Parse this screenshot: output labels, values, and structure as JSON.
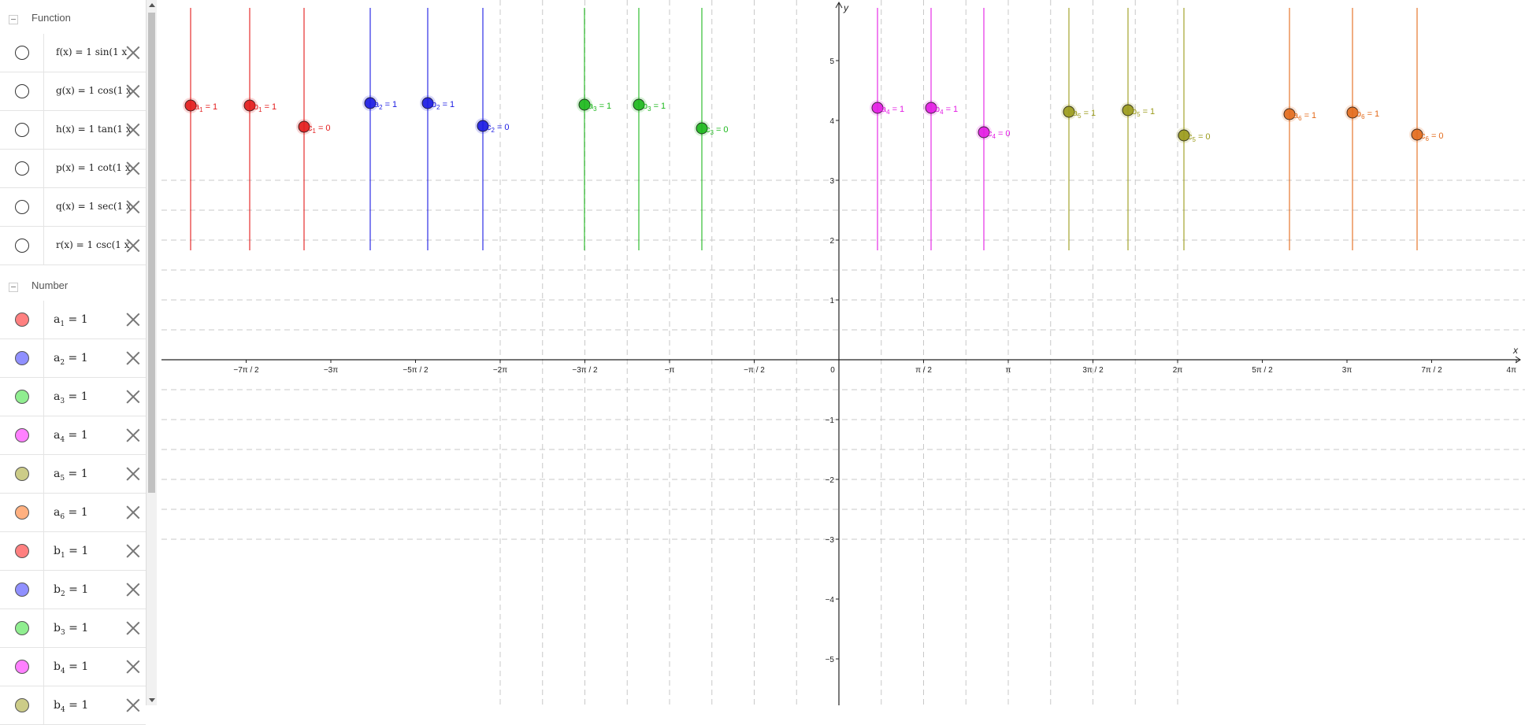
{
  "algebra": {
    "function_group": {
      "label": "Function"
    },
    "functions": [
      {
        "name": "f-row",
        "text": "f(x) = 1 sin(1 x"
      },
      {
        "name": "g-row",
        "text": "g(x) = 1 cos(1 x"
      },
      {
        "name": "h-row",
        "text": "h(x) = 1 tan(1 x"
      },
      {
        "name": "p-row",
        "text": "p(x) = 1 cot(1 x"
      },
      {
        "name": "q-row",
        "text": "q(x) = 1 sec(1 x"
      },
      {
        "name": "r-row",
        "text": "r(x) = 1 csc(1 x"
      }
    ],
    "number_group": {
      "label": "Number"
    },
    "numbers": [
      {
        "var": "a",
        "sub": "1",
        "value": "= 1",
        "color": "#ff8080"
      },
      {
        "var": "a",
        "sub": "2",
        "value": "= 1",
        "color": "#9090ff"
      },
      {
        "var": "a",
        "sub": "3",
        "value": "= 1",
        "color": "#90ee90"
      },
      {
        "var": "a",
        "sub": "4",
        "value": "= 1",
        "color": "#ff80ff"
      },
      {
        "var": "a",
        "sub": "5",
        "value": "= 1",
        "color": "#cccc88"
      },
      {
        "var": "a",
        "sub": "6",
        "value": "= 1",
        "color": "#ffb080"
      },
      {
        "var": "b",
        "sub": "1",
        "value": "= 1",
        "color": "#ff8080"
      },
      {
        "var": "b",
        "sub": "2",
        "value": "= 1",
        "color": "#9090ff"
      },
      {
        "var": "b",
        "sub": "3",
        "value": "= 1",
        "color": "#90ee90"
      },
      {
        "var": "b",
        "sub": "4",
        "value": "= 1",
        "color": "#ff80ff"
      },
      {
        "var": "b",
        "sub": "4",
        "value": "= 1",
        "color": "#cccc88"
      }
    ]
  },
  "graph": {
    "x_axis_label": "x",
    "y_axis_label": "y",
    "x_tick_labels": [
      "−7π / 2",
      "−3π",
      "−5π / 2",
      "−2π",
      "−3π / 2",
      "−π",
      "−π / 2",
      "0",
      "π / 2",
      "π",
      "3π / 2",
      "2π",
      "5π / 2",
      "3π",
      "7π / 2",
      "4π"
    ],
    "y_tick_labels": [
      "5",
      "4",
      "3",
      "2",
      "1",
      "−1",
      "−2",
      "−3",
      "−4",
      "−5"
    ],
    "slider_groups": [
      {
        "color": "#e31a1a",
        "sliders": [
          {
            "var": "a",
            "sub": "1",
            "value": "= 1"
          },
          {
            "var": "b",
            "sub": "1",
            "value": "= 1"
          },
          {
            "var": "c",
            "sub": "1",
            "value": "= 0"
          }
        ]
      },
      {
        "color": "#1a1ae3",
        "sliders": [
          {
            "var": "a",
            "sub": "2",
            "value": "= 1"
          },
          {
            "var": "b",
            "sub": "2",
            "value": "= 1"
          },
          {
            "var": "c",
            "sub": "2",
            "value": "= 0"
          }
        ]
      },
      {
        "color": "#1db81d",
        "sliders": [
          {
            "var": "a",
            "sub": "3",
            "value": "= 1"
          },
          {
            "var": "b",
            "sub": "3",
            "value": "= 1"
          },
          {
            "var": "c",
            "sub": "3",
            "value": "= 0"
          }
        ]
      },
      {
        "color": "#e31ae3",
        "sliders": [
          {
            "var": "a",
            "sub": "4",
            "value": "= 1"
          },
          {
            "var": "b",
            "sub": "4",
            "value": "= 1"
          },
          {
            "var": "c",
            "sub": "4",
            "value": "= 0"
          }
        ]
      },
      {
        "color": "#9a9a1a",
        "sliders": [
          {
            "var": "a",
            "sub": "5",
            "value": "= 1"
          },
          {
            "var": "b",
            "sub": "5",
            "value": "= 1"
          },
          {
            "var": "c",
            "sub": "5",
            "value": "= 0"
          }
        ]
      },
      {
        "color": "#e36a1a",
        "sliders": [
          {
            "var": "a",
            "sub": "6",
            "value": "= 1"
          },
          {
            "var": "b",
            "sub": "6",
            "value": "= 1"
          },
          {
            "var": "c",
            "sub": "6",
            "value": "= 0"
          }
        ]
      }
    ]
  }
}
